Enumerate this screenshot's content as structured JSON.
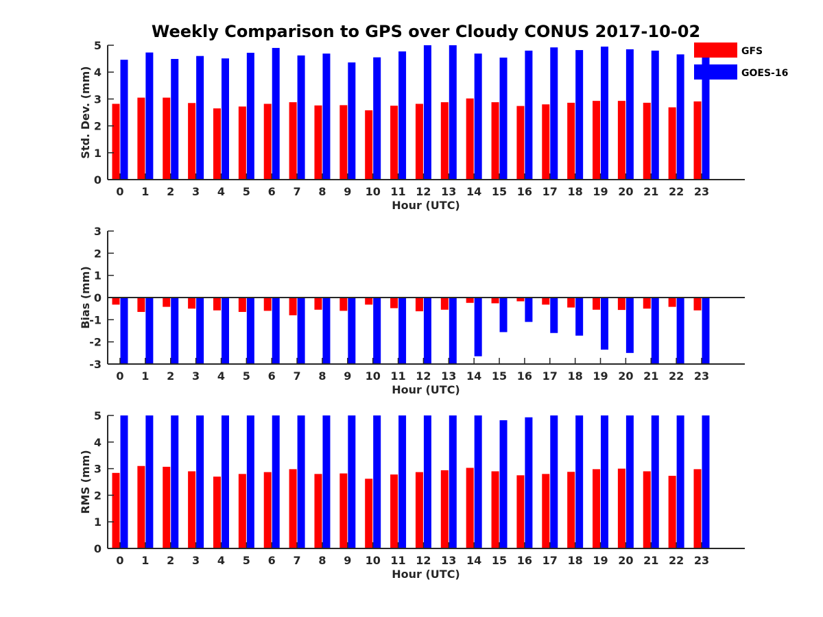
{
  "title": "Weekly Comparison to GPS over Cloudy CONUS 2017-10-02",
  "colors": {
    "GFS": "#ff0000",
    "GOES-16": "#0000ff",
    "axis": "#262626"
  },
  "legend": {
    "items": [
      "GFS",
      "GOES-16"
    ],
    "placement": "top-right"
  },
  "chart_data": [
    {
      "type": "bar",
      "title": "Weekly Comparison to GPS over Cloudy CONUS 2017-10-02",
      "xlabel": "Hour (UTC)",
      "ylabel": "Std. Dev. (mm)",
      "ylim": [
        0,
        5
      ],
      "yticks": [
        0,
        1,
        2,
        3,
        4,
        5
      ],
      "categories": [
        "0",
        "1",
        "2",
        "3",
        "4",
        "5",
        "6",
        "7",
        "8",
        "9",
        "10",
        "11",
        "12",
        "13",
        "14",
        "15",
        "16",
        "17",
        "18",
        "19",
        "20",
        "21",
        "22",
        "23"
      ],
      "series": [
        {
          "name": "GFS",
          "values": [
            2.82,
            3.05,
            3.05,
            2.85,
            2.65,
            2.72,
            2.82,
            2.88,
            2.76,
            2.77,
            2.58,
            2.75,
            2.82,
            2.88,
            3.02,
            2.88,
            2.74,
            2.8,
            2.86,
            2.93,
            2.93,
            2.86,
            2.69,
            2.91
          ]
        },
        {
          "name": "GOES-16",
          "values": [
            4.46,
            4.73,
            4.49,
            4.6,
            4.51,
            4.72,
            4.9,
            4.62,
            4.69,
            4.36,
            4.55,
            4.77,
            5.0,
            5.0,
            4.69,
            4.54,
            4.8,
            4.92,
            4.82,
            4.95,
            4.85,
            4.8,
            4.66,
            4.6
          ]
        }
      ],
      "grid": false
    },
    {
      "type": "bar",
      "title": "",
      "xlabel": "Hour (UTC)",
      "ylabel": "Bias (mm)",
      "ylim": [
        -3,
        3
      ],
      "yticks": [
        -3,
        -2,
        -1,
        0,
        1,
        2,
        3
      ],
      "categories": [
        "0",
        "1",
        "2",
        "3",
        "4",
        "5",
        "6",
        "7",
        "8",
        "9",
        "10",
        "11",
        "12",
        "13",
        "14",
        "15",
        "16",
        "17",
        "18",
        "19",
        "20",
        "21",
        "22",
        "23"
      ],
      "series": [
        {
          "name": "GFS",
          "values": [
            -0.32,
            -0.65,
            -0.42,
            -0.5,
            -0.58,
            -0.65,
            -0.6,
            -0.8,
            -0.55,
            -0.6,
            -0.32,
            -0.48,
            -0.62,
            -0.55,
            -0.24,
            -0.26,
            -0.17,
            -0.32,
            -0.45,
            -0.55,
            -0.56,
            -0.5,
            -0.42,
            -0.58
          ]
        },
        {
          "name": "GOES-16",
          "values": [
            -3.0,
            -3.0,
            -3.0,
            -3.0,
            -3.0,
            -3.0,
            -3.0,
            -3.0,
            -3.0,
            -3.0,
            -3.0,
            -3.0,
            -3.0,
            -3.0,
            -2.65,
            -1.56,
            -1.1,
            -1.6,
            -1.72,
            -2.35,
            -2.5,
            -3.0,
            -3.0,
            -3.0
          ]
        }
      ],
      "grid": false
    },
    {
      "type": "bar",
      "title": "",
      "xlabel": "Hour (UTC)",
      "ylabel": "RMS (mm)",
      "ylim": [
        0,
        5
      ],
      "yticks": [
        0,
        1,
        2,
        3,
        4,
        5
      ],
      "categories": [
        "0",
        "1",
        "2",
        "3",
        "4",
        "5",
        "6",
        "7",
        "8",
        "9",
        "10",
        "11",
        "12",
        "13",
        "14",
        "15",
        "16",
        "17",
        "18",
        "19",
        "20",
        "21",
        "22",
        "23"
      ],
      "series": [
        {
          "name": "GFS",
          "values": [
            2.84,
            3.1,
            3.07,
            2.9,
            2.7,
            2.8,
            2.87,
            2.98,
            2.8,
            2.82,
            2.62,
            2.78,
            2.87,
            2.94,
            3.03,
            2.9,
            2.75,
            2.8,
            2.88,
            2.98,
            3.0,
            2.9,
            2.73,
            2.98
          ]
        },
        {
          "name": "GOES-16",
          "values": [
            5.0,
            5.0,
            5.0,
            5.0,
            5.0,
            5.0,
            5.0,
            5.0,
            5.0,
            5.0,
            5.0,
            5.0,
            5.0,
            5.0,
            5.0,
            4.82,
            4.93,
            5.0,
            5.0,
            5.0,
            5.0,
            5.0,
            5.0,
            5.0
          ]
        }
      ],
      "grid": false
    }
  ]
}
